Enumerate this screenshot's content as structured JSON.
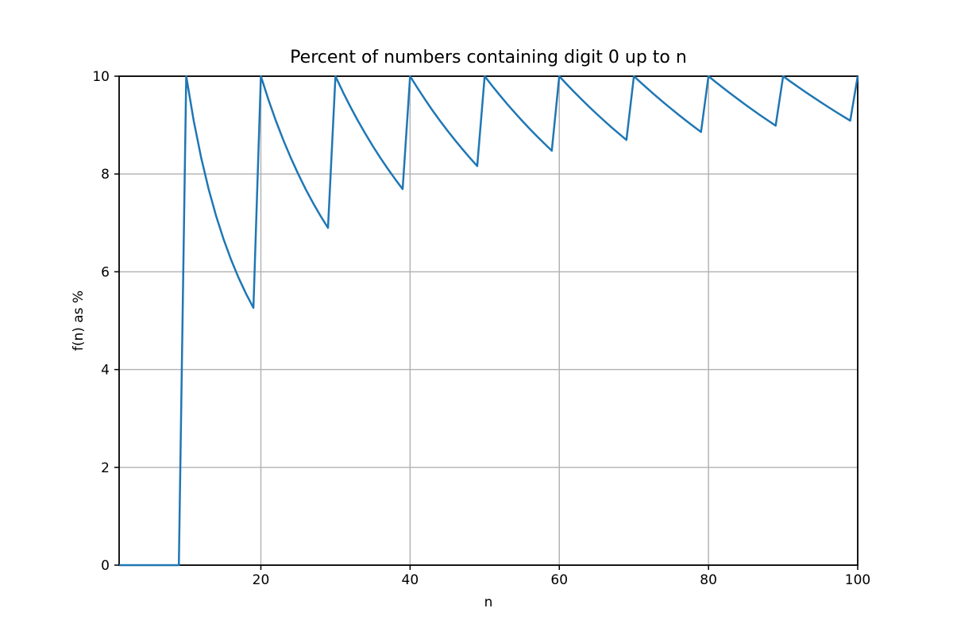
{
  "chart_data": {
    "type": "line",
    "title": "Percent of numbers containing digit 0 up to n",
    "xlabel": "n",
    "ylabel": "f(n) as %",
    "xlim": [
      1,
      100
    ],
    "ylim": [
      0,
      10
    ],
    "xticks": [
      20,
      40,
      60,
      80,
      100
    ],
    "yticks": [
      0,
      2,
      4,
      6,
      8,
      10
    ],
    "grid": true,
    "legend": false,
    "line_color": "#1f77b4",
    "grid_color": "#b0b0b0",
    "axis_color": "#000000",
    "background_color": "#ffffff",
    "series": [
      {
        "name": "f(n)",
        "x": [
          1,
          2,
          3,
          4,
          5,
          6,
          7,
          8,
          9,
          10,
          11,
          12,
          13,
          14,
          15,
          16,
          17,
          18,
          19,
          20,
          21,
          22,
          23,
          24,
          25,
          26,
          27,
          28,
          29,
          30,
          31,
          32,
          33,
          34,
          35,
          36,
          37,
          38,
          39,
          40,
          41,
          42,
          43,
          44,
          45,
          46,
          47,
          48,
          49,
          50,
          51,
          52,
          53,
          54,
          55,
          56,
          57,
          58,
          59,
          60,
          61,
          62,
          63,
          64,
          65,
          66,
          67,
          68,
          69,
          70,
          71,
          72,
          73,
          74,
          75,
          76,
          77,
          78,
          79,
          80,
          81,
          82,
          83,
          84,
          85,
          86,
          87,
          88,
          89,
          90,
          91,
          92,
          93,
          94,
          95,
          96,
          97,
          98,
          99,
          100
        ],
        "y": [
          0,
          0,
          0,
          0,
          0,
          0,
          0,
          0,
          0,
          10,
          9.091,
          8.333,
          7.692,
          7.143,
          6.667,
          6.25,
          5.882,
          5.556,
          5.263,
          10,
          9.524,
          9.091,
          8.696,
          8.333,
          8,
          7.692,
          7.407,
          7.143,
          6.897,
          10,
          9.677,
          9.375,
          9.091,
          8.824,
          8.571,
          8.333,
          8.108,
          7.895,
          7.692,
          10,
          9.756,
          9.524,
          9.302,
          9.091,
          8.889,
          8.696,
          8.511,
          8.333,
          8.163,
          10,
          9.804,
          9.615,
          9.434,
          9.259,
          9.091,
          8.929,
          8.772,
          8.621,
          8.475,
          10,
          9.836,
          9.677,
          9.524,
          9.375,
          9.231,
          9.091,
          8.955,
          8.824,
          8.696,
          10,
          9.859,
          9.722,
          9.589,
          9.459,
          9.333,
          9.211,
          9.091,
          8.974,
          8.861,
          10,
          9.877,
          9.756,
          9.639,
          9.524,
          9.412,
          9.302,
          9.195,
          9.091,
          8.989,
          10,
          9.89,
          9.783,
          9.677,
          9.574,
          9.474,
          9.375,
          9.278,
          9.184,
          9.091,
          10
        ]
      }
    ]
  }
}
